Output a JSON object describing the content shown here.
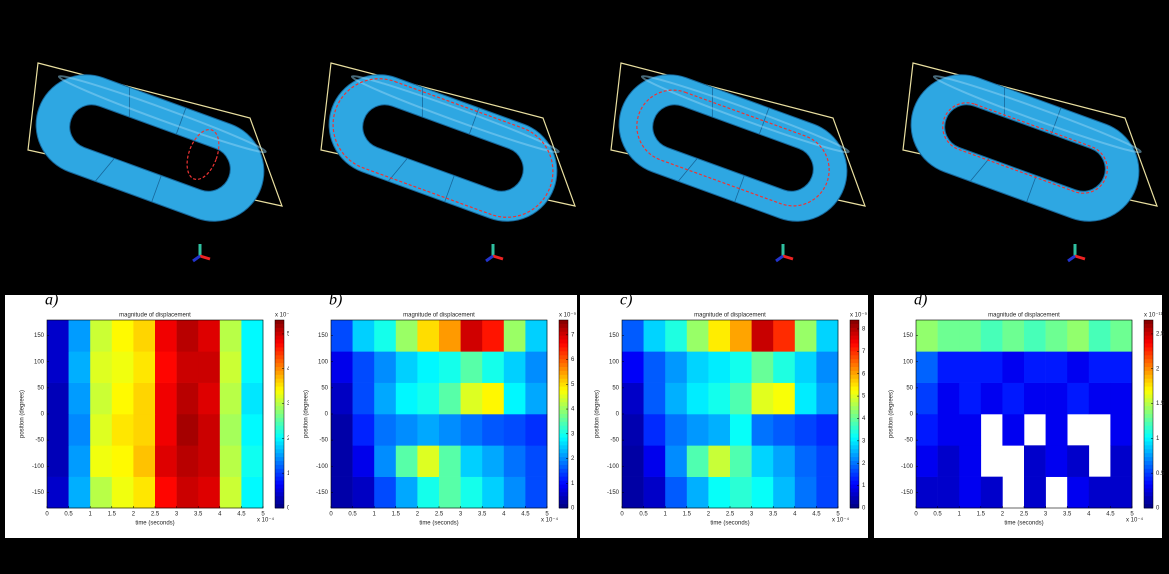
{
  "chart_data": [
    {
      "type": "heatmap",
      "panel_label": "a)",
      "title": "magnitude of displacement",
      "x_label": "time (seconds)",
      "y_label": "position (degrees)",
      "x_exponent": "x 10⁻⁴",
      "xlim": [
        0,
        5
      ],
      "ylim": [
        -180,
        180
      ],
      "xticks": [
        0,
        0.5,
        1,
        1.5,
        2,
        2.5,
        3,
        3.5,
        4,
        4.5,
        5
      ],
      "yticks": [
        -150,
        -100,
        -50,
        0,
        50,
        100,
        150
      ],
      "x": [
        0.25,
        0.75,
        1.25,
        1.75,
        2.25,
        2.75,
        3.25,
        3.75,
        4.25,
        4.75
      ],
      "y": [
        -150,
        -90,
        -30,
        30,
        90,
        150
      ],
      "z": [
        [
          0.4,
          1.6,
          3.0,
          3.3,
          3.5,
          4.7,
          5.0,
          4.9,
          3.1,
          2.0
        ],
        [
          0.3,
          1.5,
          3.3,
          3.4,
          3.7,
          4.9,
          5.1,
          5.0,
          3.0,
          2.1
        ],
        [
          0.3,
          1.4,
          3.2,
          3.5,
          3.6,
          4.8,
          5.2,
          5.0,
          2.9,
          2.0
        ],
        [
          0.3,
          1.5,
          3.1,
          3.4,
          3.6,
          4.8,
          5.1,
          4.9,
          3.0,
          1.9
        ],
        [
          0.4,
          1.6,
          3.2,
          3.3,
          3.5,
          4.7,
          5.0,
          5.0,
          3.1,
          2.0
        ],
        [
          0.4,
          1.5,
          3.1,
          3.4,
          3.6,
          4.8,
          5.1,
          4.9,
          3.0,
          2.0
        ]
      ],
      "colorbar": {
        "lim": [
          0,
          5.4
        ],
        "ticks": [
          0,
          1,
          2,
          3,
          4,
          5
        ],
        "label": "x 10⁻⁹"
      }
    },
    {
      "type": "heatmap",
      "panel_label": "b)",
      "title": "magnitude of displacement",
      "x_label": "time (seconds)",
      "y_label": "position (degrees)",
      "x_exponent": "x 10⁻⁴",
      "xlim": [
        0,
        5
      ],
      "ylim": [
        -180,
        180
      ],
      "xticks": [
        0,
        0.5,
        1,
        1.5,
        2,
        2.5,
        3,
        3.5,
        4,
        4.5,
        5
      ],
      "yticks": [
        -150,
        -100,
        -50,
        0,
        50,
        100,
        150
      ],
      "x": [
        0.25,
        0.75,
        1.25,
        1.75,
        2.25,
        2.75,
        3.25,
        3.75,
        4.25,
        4.75
      ],
      "y": [
        -150,
        -90,
        -30,
        30,
        90,
        150
      ],
      "z": [
        [
          0.3,
          0.5,
          1.5,
          2.2,
          3.0,
          3.5,
          3.0,
          2.5,
          2.0,
          1.5
        ],
        [
          0.3,
          0.8,
          2.0,
          3.5,
          4.5,
          3.5,
          2.5,
          2.2,
          1.8,
          1.5
        ],
        [
          0.3,
          1.2,
          1.8,
          2.0,
          2.2,
          2.0,
          1.8,
          1.6,
          1.5,
          1.3
        ],
        [
          0.5,
          1.5,
          2.2,
          2.8,
          3.0,
          3.5,
          4.5,
          4.8,
          2.8,
          2.2
        ],
        [
          0.8,
          1.5,
          2.0,
          2.5,
          2.8,
          3.0,
          3.5,
          3.0,
          2.5,
          2.0
        ],
        [
          1.5,
          2.5,
          3.0,
          4.0,
          5.0,
          5.5,
          7.0,
          6.5,
          4.0,
          2.5
        ]
      ],
      "colorbar": {
        "lim": [
          0,
          7.6
        ],
        "ticks": [
          0,
          1,
          2,
          3,
          4,
          5,
          6,
          7
        ],
        "label": "x 10⁻⁹"
      }
    },
    {
      "type": "heatmap",
      "panel_label": "c)",
      "title": "magnitude of displacement",
      "x_label": "time (seconds)",
      "y_label": "position (degrees)",
      "x_exponent": "x 10⁻⁴",
      "xlim": [
        0,
        5
      ],
      "ylim": [
        -180,
        180
      ],
      "xticks": [
        0,
        0.5,
        1,
        1.5,
        2,
        2.5,
        3,
        3.5,
        4,
        4.5,
        5
      ],
      "yticks": [
        -150,
        -100,
        -50,
        0,
        50,
        100,
        150
      ],
      "x": [
        0.25,
        0.75,
        1.25,
        1.75,
        2.25,
        2.75,
        3.25,
        3.75,
        4.25,
        4.75
      ],
      "y": [
        -150,
        -90,
        -30,
        30,
        90,
        150
      ],
      "z": [
        [
          0.3,
          0.6,
          1.8,
          2.5,
          3.2,
          3.5,
          3.2,
          2.6,
          2.0,
          1.6
        ],
        [
          0.3,
          0.9,
          2.2,
          3.8,
          4.8,
          3.8,
          2.8,
          2.4,
          1.9,
          1.6
        ],
        [
          0.4,
          1.4,
          2.0,
          2.3,
          2.5,
          3.2,
          2.0,
          1.8,
          1.6,
          1.4
        ],
        [
          0.6,
          1.8,
          2.5,
          3.0,
          3.3,
          3.8,
          5.0,
          5.2,
          3.0,
          2.4
        ],
        [
          1.0,
          1.8,
          2.3,
          2.8,
          3.0,
          3.3,
          4.0,
          3.4,
          2.8,
          2.2
        ],
        [
          1.8,
          2.8,
          3.4,
          4.4,
          5.4,
          6.0,
          7.8,
          7.0,
          4.4,
          2.8
        ]
      ],
      "colorbar": {
        "lim": [
          0,
          8.4
        ],
        "ticks": [
          0,
          1,
          2,
          3,
          4,
          5,
          6,
          7,
          8
        ],
        "label": "x 10⁻⁹"
      }
    },
    {
      "type": "heatmap",
      "panel_label": "d)",
      "title": "magnitude of displacement",
      "x_label": "time (seconds)",
      "y_label": "position (degrees)",
      "x_exponent": "x 10⁻⁴",
      "xlim": [
        0,
        5
      ],
      "ylim": [
        -180,
        180
      ],
      "xticks": [
        0,
        0.5,
        1,
        1.5,
        2,
        2.5,
        3,
        3.5,
        4,
        4.5,
        5
      ],
      "yticks": [
        -150,
        -100,
        -50,
        0,
        50,
        100,
        150
      ],
      "x": [
        0.25,
        0.75,
        1.25,
        1.75,
        2.25,
        2.75,
        3.25,
        3.75,
        4.25,
        4.75
      ],
      "y": [
        -150,
        -90,
        -30,
        30,
        90,
        150
      ],
      "z": [
        [
          0.2,
          0.2,
          0.3,
          0.2,
          null,
          0.2,
          null,
          0.3,
          0.2,
          0.2
        ],
        [
          0.3,
          0.2,
          0.3,
          null,
          null,
          0.2,
          0.3,
          0.2,
          null,
          0.2
        ],
        [
          0.4,
          0.3,
          0.3,
          null,
          0.3,
          null,
          0.3,
          null,
          null,
          0.3
        ],
        [
          0.5,
          0.3,
          0.4,
          0.3,
          0.4,
          0.3,
          0.3,
          0.4,
          0.3,
          0.3
        ],
        [
          0.6,
          0.4,
          0.4,
          0.4,
          0.3,
          0.4,
          0.4,
          0.3,
          0.4,
          0.4
        ],
        [
          1.4,
          1.3,
          1.3,
          1.2,
          1.3,
          1.2,
          1.3,
          1.4,
          1.2,
          1.3
        ]
      ],
      "colorbar": {
        "lim": [
          0,
          2.7
        ],
        "ticks": [
          0,
          0.5,
          1,
          1.5,
          2,
          2.5
        ],
        "label": "x 10⁻¹¹"
      }
    }
  ]
}
